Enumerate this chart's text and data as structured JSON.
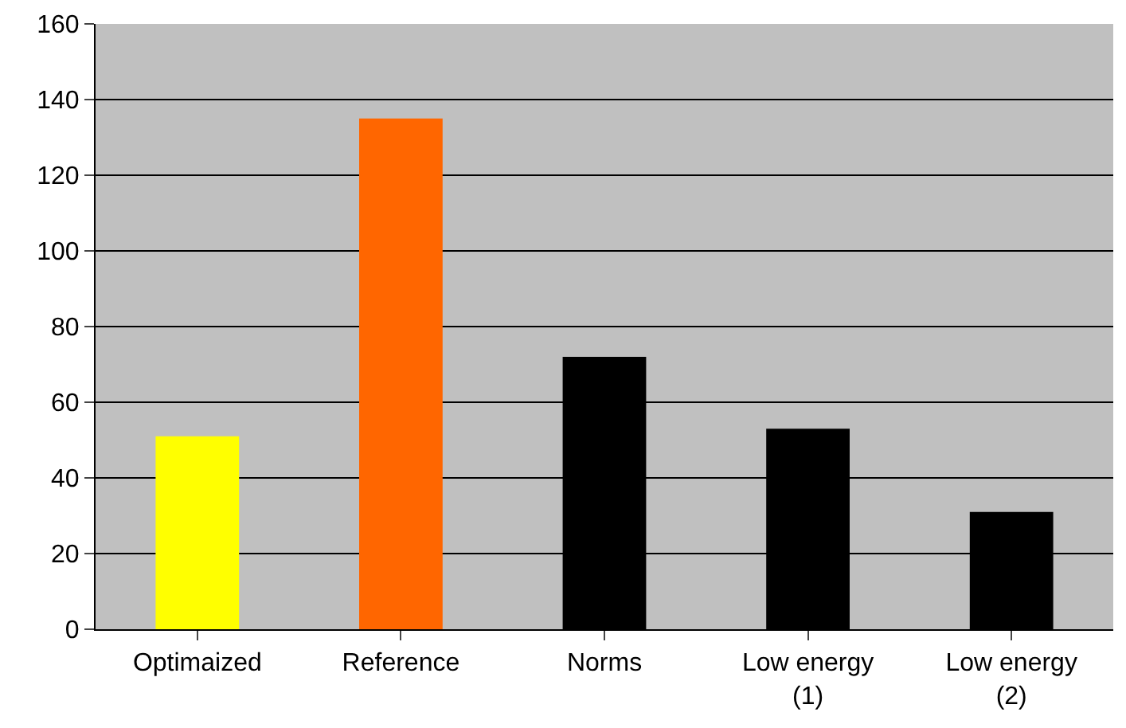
{
  "chart_data": {
    "type": "bar",
    "categories": [
      "Optimaized",
      "Reference",
      "Norms",
      "Low energy\n(1)",
      "Low energy\n(2)"
    ],
    "values": [
      51,
      135,
      72,
      53,
      31
    ],
    "colors": [
      "#ffff00",
      "#ff6600",
      "#000000",
      "#000000",
      "#000000"
    ],
    "ylim": [
      0,
      160
    ],
    "yticks": [
      0,
      20,
      40,
      60,
      80,
      100,
      120,
      140,
      160
    ],
    "grid": "y",
    "legend": false
  }
}
